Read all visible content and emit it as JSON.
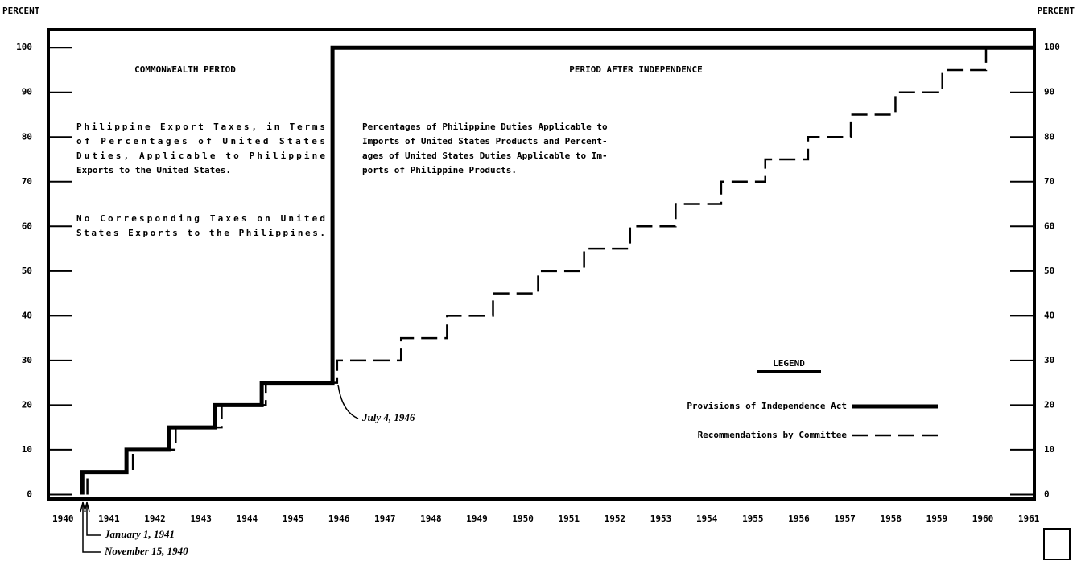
{
  "chart_data": {
    "type": "line",
    "step": "post",
    "y_label": "PERCENT",
    "y2_label": "PERCENT",
    "xlim": [
      1939.68,
      1961.12
    ],
    "xticks": [
      1940,
      1941,
      1942,
      1943,
      1944,
      1945,
      1946,
      1947,
      1948,
      1949,
      1950,
      1951,
      1952,
      1953,
      1954,
      1955,
      1956,
      1957,
      1958,
      1959,
      1960,
      1961
    ],
    "ylim": [
      -1,
      104
    ],
    "yticks": [
      0,
      10,
      20,
      30,
      40,
      50,
      60,
      70,
      80,
      90,
      100
    ],
    "legend_title": "LEGEND",
    "legend": "lower right",
    "series": [
      {
        "name": "Provisions of Independence Act",
        "color": "#000000",
        "style": "solid",
        "x": [
          1940.42,
          1940.42,
          1941.38,
          1942.31,
          1943.31,
          1944.32,
          1945.86,
          1961.12
        ],
        "values": [
          0,
          5,
          10,
          15,
          20,
          25,
          100,
          100
        ]
      },
      {
        "name": "Recommendations by Committee",
        "color": "#000000",
        "style": "dashed",
        "x": [
          1940.53,
          1940.53,
          1941.52,
          1942.45,
          1943.45,
          1944.41,
          1945.96,
          1947.35,
          1948.35,
          1949.35,
          1950.33,
          1951.33,
          1952.33,
          1953.32,
          1954.31,
          1955.27,
          1956.2,
          1957.13,
          1958.1,
          1959.12,
          1960.07,
          1961.12
        ],
        "values": [
          0,
          5,
          10,
          15,
          20,
          25,
          30,
          35,
          40,
          45,
          50,
          55,
          60,
          65,
          70,
          75,
          80,
          85,
          90,
          95,
          100,
          100
        ]
      }
    ],
    "annotations": [
      "COMMONWEALTH PERIOD",
      "PERIOD AFTER INDEPENDENCE",
      "Philippine Export Taxes, in Terms",
      "of Percentages of United States",
      "Duties, Applicable to Philippine",
      "Exports to the United States.",
      "No Corresponding Taxes on United",
      "States Exports to the Philippines.",
      "Percentages of Philippine Duties Applicable to",
      "Imports of United States Products and Percent-",
      "ages of United States Duties Applicable to Im-",
      "ports of Philippine Products.",
      "July 4, 1946",
      "January 1, 1941",
      "November 15, 1940"
    ]
  }
}
